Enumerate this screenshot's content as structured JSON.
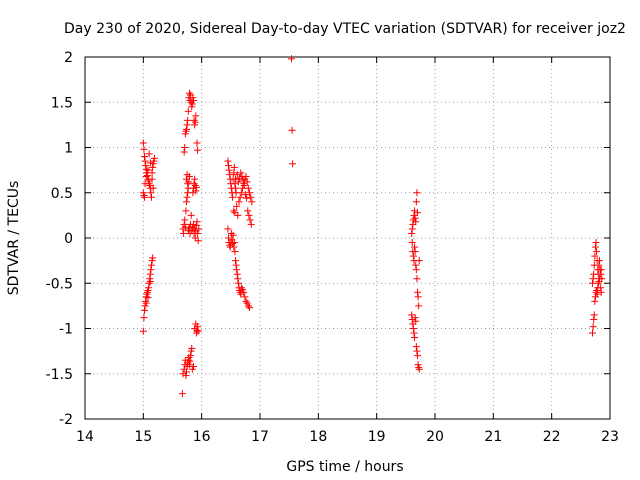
{
  "chart_data": {
    "type": "scatter",
    "title": "Day 230 of 2020, Sidereal Day-to-day VTEC variation (SDTVAR) for receiver joz2",
    "xlabel": "GPS time / hours",
    "ylabel": "SDTVAR / TECUs",
    "xlim": [
      14,
      23
    ],
    "ylim": [
      -2,
      2
    ],
    "xticks": [
      "14",
      "15",
      "16",
      "17",
      "18",
      "19",
      "20",
      "21",
      "22",
      "23"
    ],
    "yticks": [
      "-2",
      "-1.5",
      "-1",
      "-0.5",
      "0",
      "0.5",
      "1",
      "1.5",
      "2"
    ],
    "grid": true,
    "marker": "+",
    "color": "#ff0000",
    "series": [
      {
        "name": "SDTVAR",
        "points": [
          [
            15.0,
            1.05
          ],
          [
            15.01,
            0.98
          ],
          [
            15.02,
            0.9
          ],
          [
            15.03,
            0.85
          ],
          [
            15.04,
            0.8
          ],
          [
            15.05,
            0.76
          ],
          [
            15.06,
            0.72
          ],
          [
            15.07,
            0.69
          ],
          [
            15.08,
            0.65
          ],
          [
            15.09,
            0.63
          ],
          [
            15.1,
            0.6
          ],
          [
            15.11,
            0.58
          ],
          [
            15.12,
            0.55
          ],
          [
            15.13,
            0.5
          ],
          [
            15.14,
            0.45
          ],
          [
            15.15,
            0.72
          ],
          [
            15.16,
            0.78
          ],
          [
            15.17,
            0.82
          ],
          [
            15.18,
            0.85
          ],
          [
            15.19,
            0.88
          ],
          [
            15.0,
            0.5
          ],
          [
            15.01,
            0.47
          ],
          [
            15.02,
            0.45
          ],
          [
            15.03,
            0.6
          ],
          [
            15.05,
            0.68
          ],
          [
            15.08,
            0.75
          ],
          [
            15.1,
            0.93
          ],
          [
            15.12,
            0.83
          ],
          [
            15.15,
            0.65
          ],
          [
            15.17,
            0.55
          ],
          [
            15.0,
            -1.03
          ],
          [
            15.01,
            -0.88
          ],
          [
            15.02,
            -0.8
          ],
          [
            15.03,
            -0.75
          ],
          [
            15.04,
            -0.7
          ],
          [
            15.05,
            -0.65
          ],
          [
            15.06,
            -0.62
          ],
          [
            15.07,
            -0.6
          ],
          [
            15.08,
            -0.58
          ],
          [
            15.09,
            -0.55
          ],
          [
            15.1,
            -0.5
          ],
          [
            15.11,
            -0.45
          ],
          [
            15.12,
            -0.4
          ],
          [
            15.13,
            -0.35
          ],
          [
            15.14,
            -0.3
          ],
          [
            15.15,
            -0.25
          ],
          [
            15.16,
            -0.22
          ],
          [
            15.05,
            -0.72
          ],
          [
            15.08,
            -0.66
          ],
          [
            15.12,
            -0.48
          ],
          [
            15.67,
            -1.72
          ],
          [
            15.68,
            -1.5
          ],
          [
            15.7,
            -1.45
          ],
          [
            15.71,
            -1.4
          ],
          [
            15.72,
            -1.35
          ],
          [
            15.73,
            -1.52
          ],
          [
            15.74,
            -1.48
          ],
          [
            15.75,
            -1.42
          ],
          [
            15.76,
            -1.38
          ],
          [
            15.77,
            -1.35
          ],
          [
            15.78,
            -1.32
          ],
          [
            15.79,
            -1.4
          ],
          [
            15.8,
            -1.36
          ],
          [
            15.81,
            -1.3
          ],
          [
            15.82,
            -1.25
          ],
          [
            15.83,
            -1.22
          ],
          [
            15.84,
            -1.45
          ],
          [
            15.86,
            -1.42
          ],
          [
            15.88,
            -1.0
          ],
          [
            15.9,
            -0.95
          ],
          [
            15.91,
            -1.05
          ],
          [
            15.92,
            -1.02
          ],
          [
            15.93,
            -0.98
          ],
          [
            15.94,
            -1.03
          ],
          [
            15.68,
            0.1
          ],
          [
            15.69,
            0.05
          ],
          [
            15.7,
            0.15
          ],
          [
            15.71,
            0.2
          ],
          [
            15.72,
            0.12
          ],
          [
            15.73,
            0.3
          ],
          [
            15.74,
            0.4
          ],
          [
            15.75,
            0.45
          ],
          [
            15.76,
            0.5
          ],
          [
            15.77,
            0.08
          ],
          [
            15.78,
            0.1
          ],
          [
            15.79,
            0.12
          ],
          [
            15.8,
            0.05
          ],
          [
            15.81,
            0.15
          ],
          [
            15.82,
            0.25
          ],
          [
            15.83,
            0.08
          ],
          [
            15.84,
            0.1
          ],
          [
            15.85,
            0.12
          ],
          [
            15.86,
            0.15
          ],
          [
            15.87,
            0.05
          ],
          [
            15.88,
            0.1
          ],
          [
            15.89,
            0.0
          ],
          [
            15.9,
            0.08
          ],
          [
            15.91,
            0.14
          ],
          [
            15.92,
            0.18
          ],
          [
            15.93,
            0.05
          ],
          [
            15.94,
            -0.03
          ],
          [
            15.95,
            0.1
          ],
          [
            15.7,
            0.95
          ],
          [
            15.71,
            1.0
          ],
          [
            15.72,
            1.15
          ],
          [
            15.73,
            1.18
          ],
          [
            15.74,
            1.2
          ],
          [
            15.75,
            1.25
          ],
          [
            15.76,
            1.3
          ],
          [
            15.77,
            1.4
          ],
          [
            15.78,
            1.55
          ],
          [
            15.79,
            1.6
          ],
          [
            15.8,
            1.52
          ],
          [
            15.81,
            1.58
          ],
          [
            15.82,
            1.5
          ],
          [
            15.83,
            1.45
          ],
          [
            15.84,
            1.48
          ],
          [
            15.85,
            1.55
          ],
          [
            15.86,
            1.52
          ],
          [
            15.87,
            1.3
          ],
          [
            15.88,
            1.25
          ],
          [
            15.89,
            1.28
          ],
          [
            15.9,
            1.35
          ],
          [
            15.92,
            1.05
          ],
          [
            15.93,
            0.97
          ],
          [
            15.74,
            0.65
          ],
          [
            15.75,
            0.7
          ],
          [
            15.76,
            0.6
          ],
          [
            15.77,
            0.55
          ],
          [
            15.78,
            0.62
          ],
          [
            15.79,
            0.68
          ],
          [
            15.85,
            0.5
          ],
          [
            15.86,
            0.55
          ],
          [
            15.87,
            0.6
          ],
          [
            15.88,
            0.65
          ],
          [
            15.89,
            0.58
          ],
          [
            15.9,
            0.52
          ],
          [
            15.91,
            0.56
          ],
          [
            16.45,
            0.85
          ],
          [
            16.46,
            0.8
          ],
          [
            16.47,
            0.75
          ],
          [
            16.48,
            0.7
          ],
          [
            16.49,
            0.65
          ],
          [
            16.5,
            0.6
          ],
          [
            16.51,
            0.55
          ],
          [
            16.52,
            0.5
          ],
          [
            16.53,
            0.45
          ],
          [
            16.54,
            0.65
          ],
          [
            16.55,
            0.72
          ],
          [
            16.56,
            0.78
          ],
          [
            16.57,
            0.6
          ],
          [
            16.58,
            0.55
          ],
          [
            16.59,
            0.5
          ],
          [
            16.45,
            0.1
          ],
          [
            16.46,
            0.0
          ],
          [
            16.47,
            -0.05
          ],
          [
            16.48,
            -0.08
          ],
          [
            16.49,
            -0.1
          ],
          [
            16.5,
            -0.05
          ],
          [
            16.51,
            0.05
          ],
          [
            16.52,
            -0.02
          ],
          [
            16.53,
            -0.06
          ],
          [
            16.54,
            0.03
          ],
          [
            16.55,
            -0.1
          ],
          [
            16.56,
            -0.05
          ],
          [
            16.57,
            -0.15
          ],
          [
            16.58,
            -0.25
          ],
          [
            16.59,
            -0.3
          ],
          [
            16.6,
            -0.35
          ],
          [
            16.61,
            -0.4
          ],
          [
            16.62,
            -0.45
          ],
          [
            16.63,
            -0.5
          ],
          [
            16.64,
            -0.55
          ],
          [
            16.65,
            -0.58
          ],
          [
            16.66,
            -0.6
          ],
          [
            16.67,
            -0.62
          ],
          [
            16.68,
            -0.55
          ],
          [
            16.7,
            -0.57
          ],
          [
            16.72,
            -0.6
          ],
          [
            16.74,
            -0.65
          ],
          [
            16.76,
            -0.7
          ],
          [
            16.78,
            -0.72
          ],
          [
            16.8,
            -0.75
          ],
          [
            16.82,
            -0.77
          ],
          [
            16.55,
            0.3
          ],
          [
            16.57,
            0.28
          ],
          [
            16.6,
            0.35
          ],
          [
            16.62,
            0.25
          ],
          [
            16.64,
            0.4
          ],
          [
            16.66,
            0.45
          ],
          [
            16.68,
            0.5
          ],
          [
            16.7,
            0.55
          ],
          [
            16.72,
            0.6
          ],
          [
            16.74,
            0.65
          ],
          [
            16.76,
            0.68
          ],
          [
            16.78,
            0.62
          ],
          [
            16.8,
            0.55
          ],
          [
            16.82,
            0.5
          ],
          [
            16.84,
            0.45
          ],
          [
            16.86,
            0.4
          ],
          [
            16.58,
            0.65
          ],
          [
            16.61,
            0.7
          ],
          [
            16.63,
            0.62
          ],
          [
            16.65,
            0.66
          ],
          [
            16.67,
            0.72
          ],
          [
            16.69,
            0.68
          ],
          [
            16.71,
            0.64
          ],
          [
            16.73,
            0.58
          ],
          [
            16.75,
            0.48
          ],
          [
            16.77,
            0.44
          ],
          [
            16.79,
            0.3
          ],
          [
            16.81,
            0.25
          ],
          [
            16.83,
            0.2
          ],
          [
            16.85,
            0.15
          ],
          [
            17.54,
            1.98
          ],
          [
            17.55,
            1.19
          ],
          [
            17.56,
            0.82
          ],
          [
            19.6,
            -0.85
          ],
          [
            19.61,
            -0.9
          ],
          [
            19.62,
            -0.95
          ],
          [
            19.63,
            -1.0
          ],
          [
            19.64,
            -1.05
          ],
          [
            19.65,
            -1.1
          ],
          [
            19.66,
            -0.88
          ],
          [
            19.67,
            -0.92
          ],
          [
            19.68,
            -1.2
          ],
          [
            19.69,
            -1.25
          ],
          [
            19.7,
            -1.3
          ],
          [
            19.71,
            -1.4
          ],
          [
            19.72,
            -1.43
          ],
          [
            19.73,
            -1.45
          ],
          [
            19.6,
            0.05
          ],
          [
            19.61,
            0.1
          ],
          [
            19.62,
            0.15
          ],
          [
            19.63,
            0.2
          ],
          [
            19.64,
            0.25
          ],
          [
            19.65,
            0.3
          ],
          [
            19.66,
            0.22
          ],
          [
            19.67,
            0.18
          ],
          [
            19.68,
            0.4
          ],
          [
            19.69,
            0.5
          ],
          [
            19.7,
            0.28
          ],
          [
            19.61,
            -0.05
          ],
          [
            19.62,
            -0.15
          ],
          [
            19.63,
            -0.2
          ],
          [
            19.64,
            -0.25
          ],
          [
            19.65,
            -0.1
          ],
          [
            19.66,
            -0.15
          ],
          [
            19.67,
            -0.3
          ],
          [
            19.68,
            -0.35
          ],
          [
            19.69,
            -0.45
          ],
          [
            19.7,
            -0.6
          ],
          [
            19.71,
            -0.65
          ],
          [
            19.72,
            -0.75
          ],
          [
            19.73,
            -0.25
          ],
          [
            22.7,
            -0.5
          ],
          [
            22.71,
            -0.45
          ],
          [
            22.72,
            -0.4
          ],
          [
            22.73,
            -0.3
          ],
          [
            22.74,
            -0.2
          ],
          [
            22.75,
            -0.1
          ],
          [
            22.76,
            -0.05
          ],
          [
            22.77,
            -0.15
          ],
          [
            22.78,
            -0.25
          ],
          [
            22.79,
            -0.35
          ],
          [
            22.8,
            -0.4
          ],
          [
            22.81,
            -0.3
          ],
          [
            22.82,
            -0.25
          ],
          [
            22.83,
            -0.35
          ],
          [
            22.84,
            -0.55
          ],
          [
            22.85,
            -0.6
          ],
          [
            22.86,
            -0.45
          ],
          [
            22.7,
            -1.05
          ],
          [
            22.71,
            -0.98
          ],
          [
            22.72,
            -0.9
          ],
          [
            22.73,
            -0.85
          ],
          [
            22.74,
            -0.7
          ],
          [
            22.75,
            -0.65
          ],
          [
            22.76,
            -0.6
          ],
          [
            22.77,
            -0.58
          ],
          [
            22.78,
            -0.62
          ],
          [
            22.79,
            -0.55
          ],
          [
            22.8,
            -0.5
          ],
          [
            22.81,
            -0.48
          ],
          [
            22.82,
            -0.45
          ],
          [
            22.84,
            -0.4
          ],
          [
            22.85,
            -0.35
          ]
        ]
      }
    ]
  }
}
